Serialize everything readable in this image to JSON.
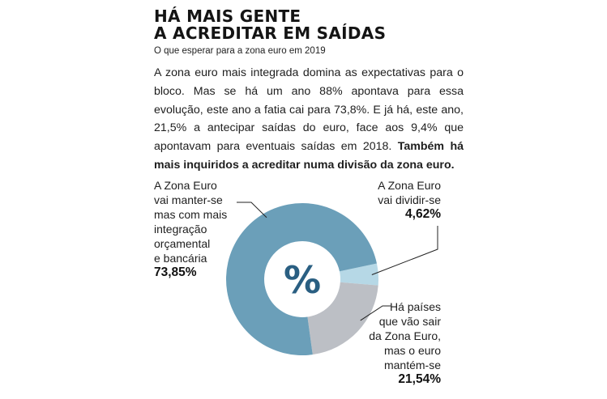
{
  "header": {
    "title_line1": "HÁ MAIS GENTE",
    "title_line2": "A ACREDITAR EM SAÍDAS",
    "subtitle": "O que esperar para a zona euro em 2019"
  },
  "body_text": "A zona euro mais integrada domina as expectativas para o bloco. Mas se há um ano 88% apontava para essa evolução, este ano a fatia cai para 73,8%. E já há, este ano, 21,5% a antecipar saídas do euro, face aos 9,4% que apontavam para eventuais saídas em 2018.",
  "body_text_bold": "Também há mais inquiridos a acreditar numa divisão da zona euro.",
  "chart_data": {
    "type": "pie",
    "donut": true,
    "center_label": "%",
    "series": [
      {
        "label_lines": [
          "A Zona Euro",
          "vai manter-se",
          "mas com mais",
          "integração",
          "orçamental",
          "e bancária"
        ],
        "value": 73.85,
        "value_label": "73,85%",
        "color": "#6b9fb9"
      },
      {
        "label_lines": [
          "A Zona Euro",
          "vai dividir-se"
        ],
        "value": 4.62,
        "value_label": "4,62%",
        "color": "#b6d8e6"
      },
      {
        "label_lines": [
          "Há países",
          "que vão sair",
          "da Zona Euro,",
          "mas o euro",
          "mantém-se"
        ],
        "value": 21.54,
        "value_label": "21,54%",
        "color": "#bcbfc5"
      }
    ]
  }
}
